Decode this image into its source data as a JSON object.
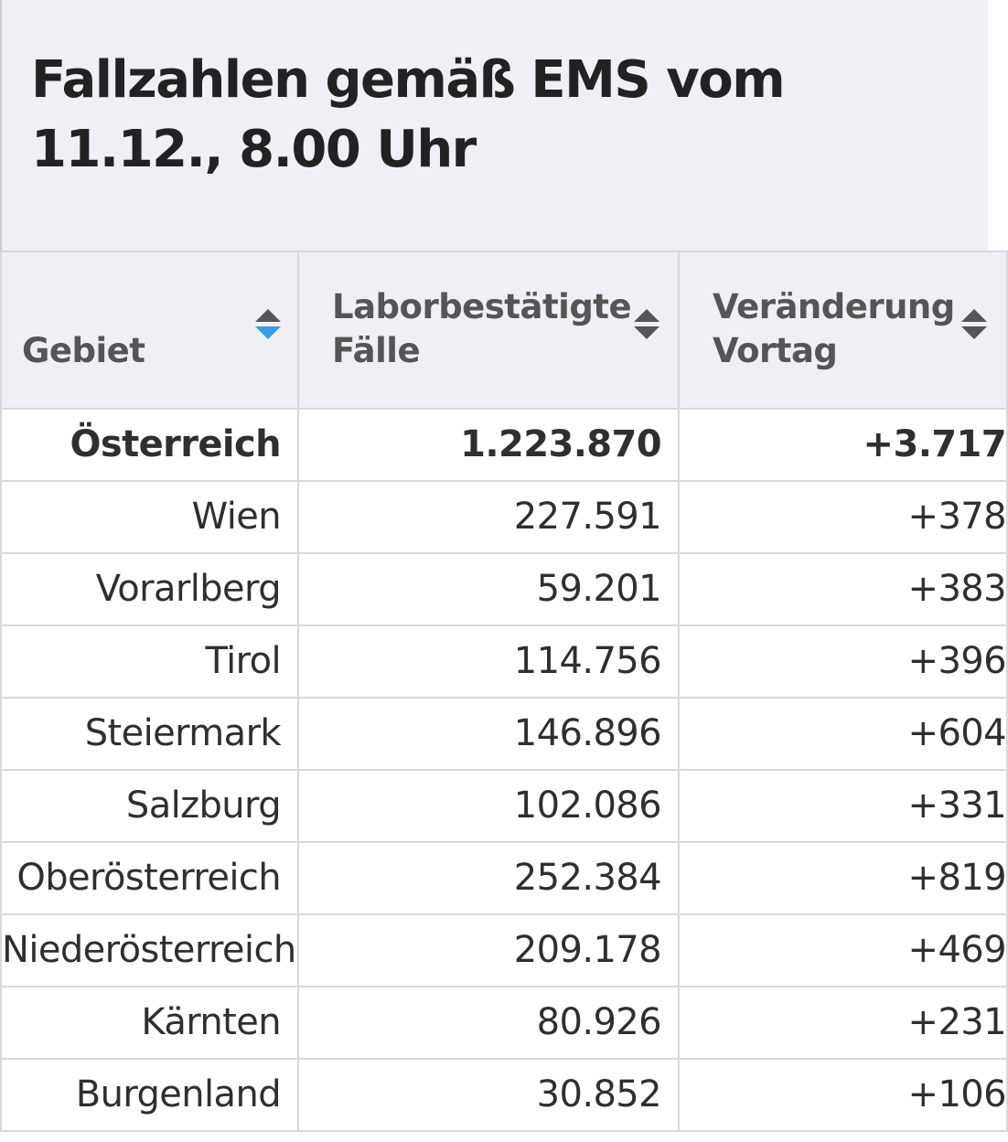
{
  "title": "Fallzahlen gemäß EMS vom 11.12., 8.00 Uhr",
  "columns": [
    {
      "label": "Gebiet",
      "sort": "descending"
    },
    {
      "label": "Laborbestätigte Fälle",
      "sort": "none"
    },
    {
      "label": "Veränderung Vortag",
      "sort": "none"
    }
  ],
  "colors": {
    "header_bg": "#eef0f6",
    "sort_active": "#3a9be8",
    "sort_inactive": "#555555",
    "grid": "#d7d9df"
  },
  "rows": [
    {
      "gebiet": "Österreich",
      "faelle": "1.223.870",
      "veraenderung": "+3.717",
      "bold": true
    },
    {
      "gebiet": "Wien",
      "faelle": "227.591",
      "veraenderung": "+378"
    },
    {
      "gebiet": "Vorarlberg",
      "faelle": "59.201",
      "veraenderung": "+383"
    },
    {
      "gebiet": "Tirol",
      "faelle": "114.756",
      "veraenderung": "+396"
    },
    {
      "gebiet": "Steiermark",
      "faelle": "146.896",
      "veraenderung": "+604"
    },
    {
      "gebiet": "Salzburg",
      "faelle": "102.086",
      "veraenderung": "+331"
    },
    {
      "gebiet": "Oberösterreich",
      "faelle": "252.384",
      "veraenderung": "+819"
    },
    {
      "gebiet": "Niederösterreich",
      "faelle": "209.178",
      "veraenderung": "+469"
    },
    {
      "gebiet": "Kärnten",
      "faelle": "80.926",
      "veraenderung": "+231"
    },
    {
      "gebiet": "Burgenland",
      "faelle": "30.852",
      "veraenderung": "+106"
    }
  ]
}
